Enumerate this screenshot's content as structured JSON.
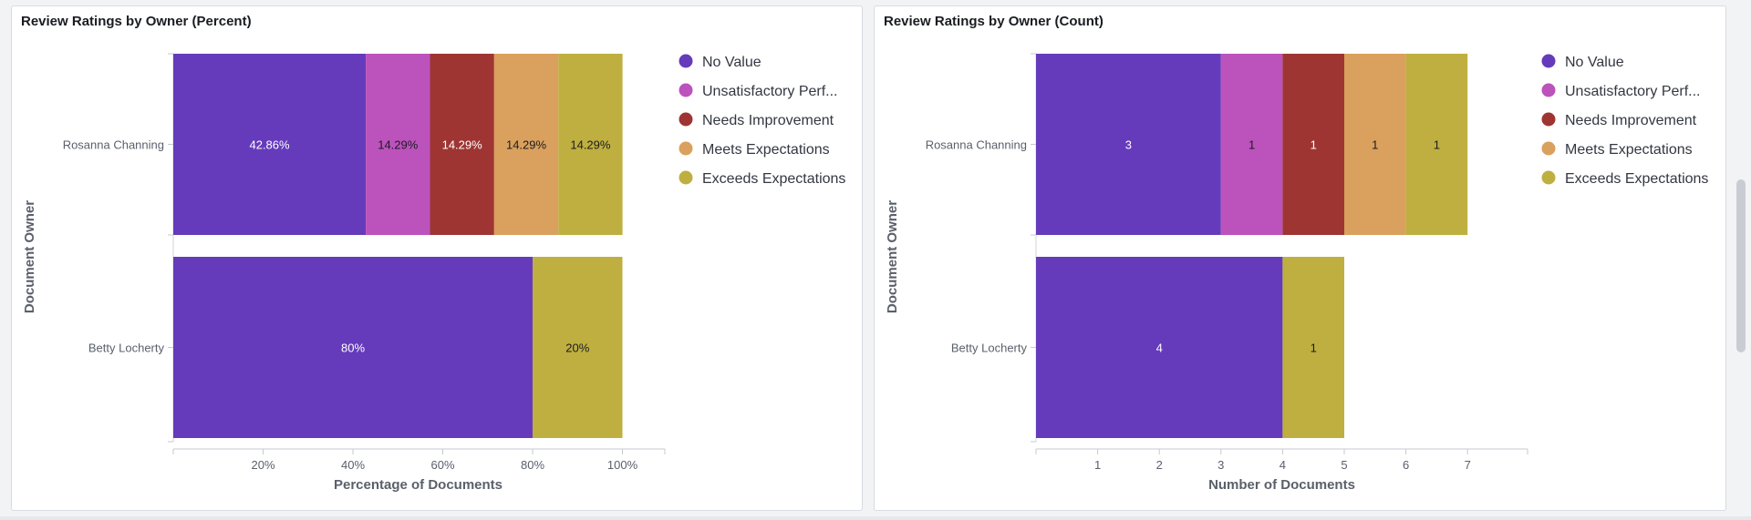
{
  "chart_data": [
    {
      "type": "bar",
      "orientation": "horizontal",
      "stacked": true,
      "title": "Review Ratings by Owner (Percent)",
      "xlabel": "Percentage of Documents",
      "ylabel": "Document Owner",
      "categories": [
        "Rosanna Channing",
        "Betty Locherty"
      ],
      "xlim": [
        0,
        110
      ],
      "xticks": [
        20,
        40,
        60,
        80,
        100
      ],
      "xtick_labels": [
        "20%",
        "40%",
        "60%",
        "80%",
        "100%"
      ],
      "series": [
        {
          "name": "No Value",
          "color": "#653bbb",
          "values": [
            42.86,
            80
          ],
          "labels": [
            "42.86%",
            "80%"
          ],
          "label_color": "#ffffff"
        },
        {
          "name": "Unsatisfactory Perf...",
          "color": "#bc52bc",
          "values": [
            14.29,
            0
          ],
          "labels": [
            "14.29%",
            ""
          ],
          "label_color": "#1a1c21"
        },
        {
          "name": "Needs Improvement",
          "color": "#9e3533",
          "values": [
            14.29,
            0
          ],
          "labels": [
            "14.29%",
            ""
          ],
          "label_color": "#ffffff"
        },
        {
          "name": "Meets Expectations",
          "color": "#daa05d",
          "values": [
            14.29,
            0
          ],
          "labels": [
            "14.29%",
            ""
          ],
          "label_color": "#1a1c21"
        },
        {
          "name": "Exceeds Expectations",
          "color": "#bfaf40",
          "values": [
            14.29,
            20
          ],
          "labels": [
            "14.29%",
            "20%"
          ],
          "label_color": "#1a1c21"
        }
      ],
      "legend_position": "right"
    },
    {
      "type": "bar",
      "orientation": "horizontal",
      "stacked": true,
      "title": "Review Ratings by Owner (Count)",
      "xlabel": "Number of Documents",
      "ylabel": "Document Owner",
      "categories": [
        "Rosanna Channing",
        "Betty Locherty"
      ],
      "xlim": [
        0,
        8
      ],
      "xticks": [
        1,
        2,
        3,
        4,
        5,
        6,
        7
      ],
      "xtick_labels": [
        "1",
        "2",
        "3",
        "4",
        "5",
        "6",
        "7"
      ],
      "series": [
        {
          "name": "No Value",
          "color": "#653bbb",
          "values": [
            3,
            4
          ],
          "labels": [
            "3",
            "4"
          ],
          "label_color": "#ffffff"
        },
        {
          "name": "Unsatisfactory Perf...",
          "color": "#bc52bc",
          "values": [
            1,
            0
          ],
          "labels": [
            "1",
            ""
          ],
          "label_color": "#1a1c21"
        },
        {
          "name": "Needs Improvement",
          "color": "#9e3533",
          "values": [
            1,
            0
          ],
          "labels": [
            "1",
            ""
          ],
          "label_color": "#ffffff"
        },
        {
          "name": "Meets Expectations",
          "color": "#daa05d",
          "values": [
            1,
            0
          ],
          "labels": [
            "1",
            ""
          ],
          "label_color": "#1a1c21"
        },
        {
          "name": "Exceeds Expectations",
          "color": "#bfaf40",
          "values": [
            1,
            1
          ],
          "labels": [
            "1",
            "1"
          ],
          "label_color": "#1a1c21"
        }
      ],
      "legend_position": "right"
    }
  ]
}
